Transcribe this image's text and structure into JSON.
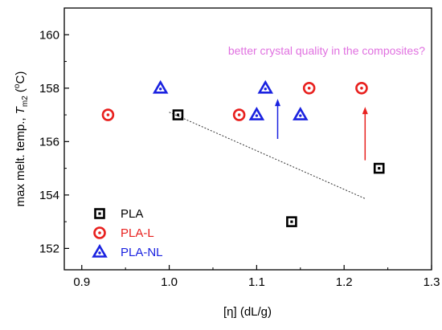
{
  "chart_data": {
    "type": "scatter",
    "xlabel": "[η] (dL/g)",
    "ylabel_main": "max melt. temp., ",
    "ylabel_sym": "T",
    "ylabel_sub": "m2",
    "ylabel_unit_open": " (",
    "ylabel_unit_sup": "o",
    "ylabel_unit_close": "C)",
    "xlim": [
      0.88,
      1.3
    ],
    "ylim": [
      151.2,
      161
    ],
    "xticks": [
      0.9,
      1.0,
      1.1,
      1.2,
      1.3
    ],
    "xtick_labels": [
      "0.9",
      "1.0",
      "1.1",
      "1.2",
      "1.3"
    ],
    "yticks": [
      152,
      154,
      156,
      158,
      160
    ],
    "ytick_labels": [
      "152",
      "154",
      "156",
      "158",
      "160"
    ],
    "grid": false,
    "legend_position": "bottom-left",
    "series": [
      {
        "name": "PLA",
        "marker": "square-dot",
        "color": "#000000",
        "points": [
          [
            1.01,
            157.0
          ],
          [
            1.14,
            153.0
          ],
          [
            1.24,
            155.0
          ]
        ]
      },
      {
        "name": "PLA-L",
        "marker": "circle-dot",
        "color": "#e8201e",
        "points": [
          [
            0.93,
            157.0
          ],
          [
            1.08,
            157.0
          ],
          [
            1.16,
            158.0
          ],
          [
            1.22,
            158.0
          ]
        ]
      },
      {
        "name": "PLA-NL",
        "marker": "triangle-dot",
        "color": "#1a22e0",
        "points": [
          [
            0.99,
            158.0
          ],
          [
            1.1,
            157.0
          ],
          [
            1.11,
            158.0
          ],
          [
            1.15,
            157.0
          ]
        ]
      }
    ],
    "trendline": {
      "color": "#333333",
      "from": [
        1.0,
        157.1
      ],
      "to": [
        1.225,
        153.85
      ]
    },
    "annotations": [
      {
        "text": "better crystal quality in the composites?",
        "color": "#e070e0",
        "x": 1.18,
        "y": 159.4
      }
    ],
    "arrows": [
      {
        "color": "#1a22e0",
        "from": [
          1.124,
          156.1
        ],
        "to": [
          1.124,
          157.6
        ]
      },
      {
        "color": "#e8201e",
        "from": [
          1.224,
          155.3
        ],
        "to": [
          1.224,
          157.3
        ]
      }
    ]
  }
}
